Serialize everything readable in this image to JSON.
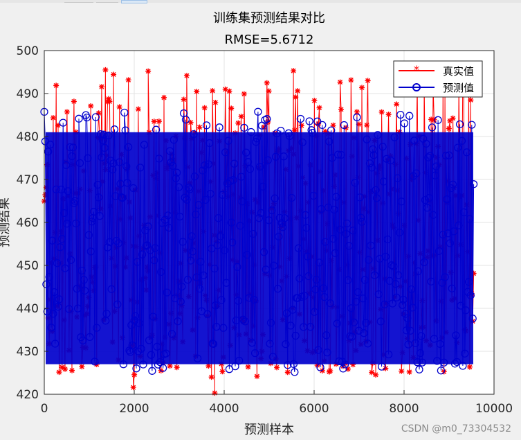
{
  "chart_data": {
    "type": "line",
    "title": "训练集预测结果对比",
    "subtitle": "RMSE=5.6712",
    "xlabel": "预测样本",
    "ylabel": "预测结果",
    "xlim": [
      0,
      10000
    ],
    "ylim": [
      420,
      500
    ],
    "xticks": [
      0,
      2000,
      4000,
      6000,
      8000,
      10000
    ],
    "yticks": [
      420,
      430,
      440,
      450,
      460,
      470,
      480,
      490,
      500
    ],
    "n_samples": 9569,
    "grid": true,
    "legend_position": "top-right",
    "series": [
      {
        "name": "真实值",
        "color": "#ff0000",
        "marker": "asterisk",
        "typical_range": [
          425,
          486
        ],
        "notable_points": [
          [
            1980,
            421.6
          ],
          [
            3790,
            420.3
          ],
          [
            2310,
            495.2
          ],
          [
            5540,
            495.3
          ],
          [
            1360,
            495.5
          ]
        ]
      },
      {
        "name": "预测值",
        "color": "#0000cc",
        "marker": "circle",
        "typical_range": [
          423,
          486
        ]
      }
    ]
  },
  "watermark": "CSDN @m0_73304532"
}
